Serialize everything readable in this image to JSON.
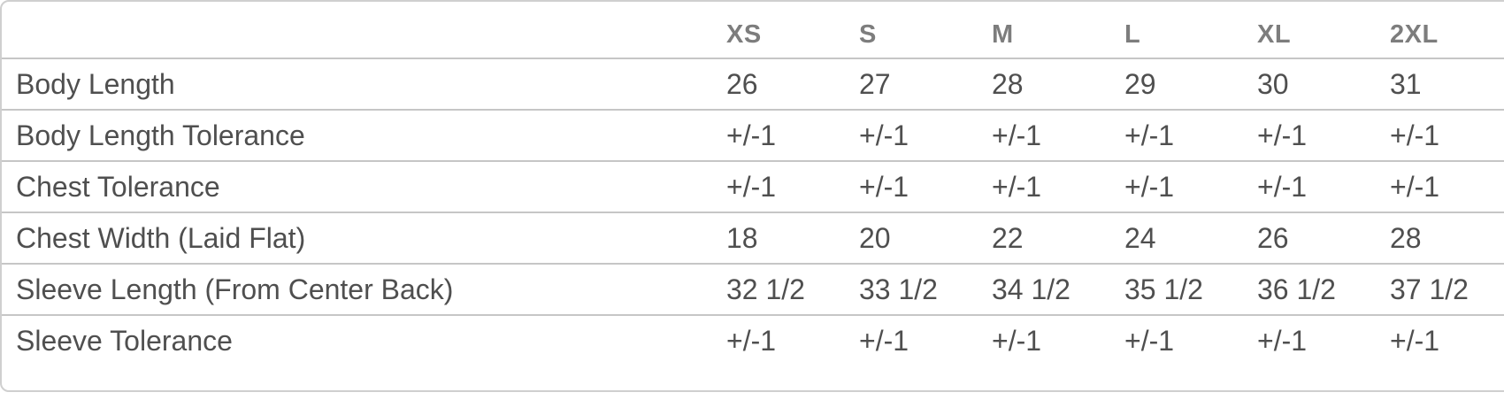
{
  "size_chart": {
    "columns": [
      "XS",
      "S",
      "M",
      "L",
      "XL",
      "2XL"
    ],
    "rows": [
      {
        "label": "Body Length",
        "values": [
          "26",
          "27",
          "28",
          "29",
          "30",
          "31"
        ]
      },
      {
        "label": "Body Length Tolerance",
        "values": [
          "+/-1",
          "+/-1",
          "+/-1",
          "+/-1",
          "+/-1",
          "+/-1"
        ]
      },
      {
        "label": "Chest Tolerance",
        "values": [
          "+/-1",
          "+/-1",
          "+/-1",
          "+/-1",
          "+/-1",
          "+/-1"
        ]
      },
      {
        "label": "Chest Width (Laid Flat)",
        "values": [
          "18",
          "20",
          "22",
          "24",
          "26",
          "28"
        ]
      },
      {
        "label": "Sleeve Length (From Center Back)",
        "values": [
          "32 1/2",
          "33 1/2",
          "34 1/2",
          "35 1/2",
          "36 1/2",
          "37 1/2"
        ]
      },
      {
        "label": "Sleeve Tolerance",
        "values": [
          "+/-1",
          "+/-1",
          "+/-1",
          "+/-1",
          "+/-1",
          "+/-1"
        ]
      }
    ],
    "colors": {
      "text": "#4f4f4f",
      "header_text": "#7d7d7d",
      "row_line": "#c6c6c6",
      "outer_border": "#cfcfcf",
      "background": "#ffffff"
    }
  }
}
